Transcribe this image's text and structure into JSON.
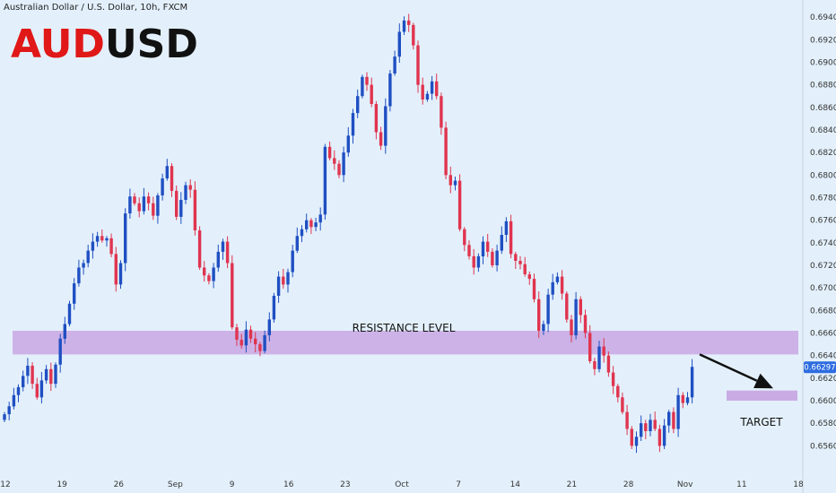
{
  "header": {
    "instrument": "Australian Dollar / U.S. Dollar, 10h, FXCM",
    "brand_part1": "AUD",
    "brand_part2": "USD"
  },
  "colors": {
    "background": "#e3f0fb",
    "up": "#1f4fc2",
    "down": "#e0344f",
    "zone": "#c8a8e3",
    "price_tag": "#2d6ce0"
  },
  "chart_data": {
    "type": "candlestick",
    "ylim": [
      0.6548,
      0.695
    ],
    "price_ticks": [
      "0.69400",
      "0.69200",
      "0.69000",
      "0.68800",
      "0.68600",
      "0.68400",
      "0.68200",
      "0.68000",
      "0.67800",
      "0.67600",
      "0.67400",
      "0.67200",
      "0.67000",
      "0.66800",
      "0.66600",
      "0.66400",
      "0.66200",
      "0.66000",
      "0.65800",
      "0.65600"
    ],
    "date_ticks": [
      "12",
      "19",
      "26",
      "Sep",
      "9",
      "16",
      "23",
      "Oct",
      "7",
      "14",
      "21",
      "28",
      "Nov",
      "11",
      "18"
    ],
    "last_price": "0.66297",
    "resistance_zone": {
      "label": "RESISTANCE LEVEL",
      "low": 0.6641,
      "high": 0.6662
    },
    "target_zone": {
      "label": "TARGET",
      "low": 0.66,
      "high": 0.6609
    },
    "projection": {
      "from_price": 0.6641,
      "to_price": 0.6611
    },
    "closes": [
      0.6588,
      0.6595,
      0.6605,
      0.6612,
      0.6622,
      0.6631,
      0.6615,
      0.6603,
      0.6618,
      0.6628,
      0.6615,
      0.6632,
      0.6655,
      0.6668,
      0.6686,
      0.6704,
      0.6718,
      0.6722,
      0.6733,
      0.6741,
      0.6746,
      0.6742,
      0.6744,
      0.673,
      0.6703,
      0.6722,
      0.6766,
      0.6781,
      0.6775,
      0.6768,
      0.6781,
      0.6775,
      0.6764,
      0.6782,
      0.6797,
      0.6808,
      0.6786,
      0.6763,
      0.6778,
      0.6791,
      0.6787,
      0.6751,
      0.6718,
      0.6711,
      0.6706,
      0.6718,
      0.6732,
      0.6741,
      0.6722,
      0.6665,
      0.6654,
      0.6649,
      0.6663,
      0.6655,
      0.665,
      0.6644,
      0.6658,
      0.6672,
      0.6693,
      0.671,
      0.6703,
      0.6714,
      0.6733,
      0.6746,
      0.6752,
      0.676,
      0.6754,
      0.6758,
      0.6765,
      0.6825,
      0.6815,
      0.681,
      0.68,
      0.682,
      0.6835,
      0.6855,
      0.687,
      0.6887,
      0.688,
      0.6863,
      0.6838,
      0.6826,
      0.6861,
      0.689,
      0.6905,
      0.6927,
      0.6937,
      0.6933,
      0.6915,
      0.688,
      0.6867,
      0.6872,
      0.6883,
      0.687,
      0.6842,
      0.68,
      0.6791,
      0.6795,
      0.6752,
      0.6738,
      0.6728,
      0.6718,
      0.6728,
      0.6741,
      0.6732,
      0.672,
      0.6733,
      0.6747,
      0.6759,
      0.673,
      0.6724,
      0.6721,
      0.6712,
      0.6708,
      0.669,
      0.6662,
      0.6668,
      0.6694,
      0.6705,
      0.671,
      0.6695,
      0.6672,
      0.6658,
      0.669,
      0.6676,
      0.666,
      0.6635,
      0.6628,
      0.6648,
      0.664,
      0.6625,
      0.6613,
      0.6603,
      0.659,
      0.6575,
      0.656,
      0.6568,
      0.658,
      0.6573,
      0.6583,
      0.6575,
      0.656,
      0.6578,
      0.659,
      0.6575,
      0.6605,
      0.6598,
      0.6603,
      0.663
    ]
  }
}
